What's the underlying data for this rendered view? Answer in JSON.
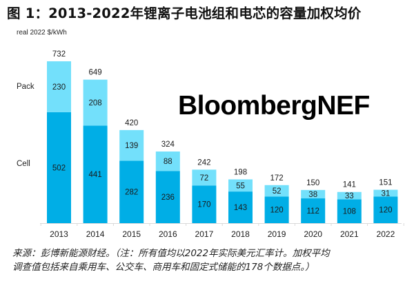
{
  "title": "图 1：2013-2022年锂离子电池组和电芯的容量加权均价",
  "footer": {
    "line1": "来源：彭博新能源财经。（注：所有值均以2022年实际美元汇率计。加权平均",
    "line2": "调查值包括来自乘用车、公交车、商用车和固定式储能的178个数据点。）"
  },
  "logo": "BloombergNEF",
  "chart_data": {
    "type": "bar",
    "stacked": true,
    "title": "图 1：2013-2022年锂离子电池组和电芯的容量加权均价",
    "ylabel": "real 2022 $/kWh",
    "xlabel": "",
    "ylim": [
      0,
      732
    ],
    "grid": false,
    "legend": "left (inline labels: Pack, Cell)",
    "categories": [
      "2013",
      "2014",
      "2015",
      "2016",
      "2017",
      "2018",
      "2019",
      "2020",
      "2021",
      "2022"
    ],
    "series": [
      {
        "name": "Cell",
        "color": "#00aee6",
        "values": [
          502,
          441,
          282,
          236,
          170,
          143,
          120,
          112,
          108,
          120
        ]
      },
      {
        "name": "Pack",
        "color": "#73e0fb",
        "values": [
          230,
          208,
          139,
          88,
          72,
          55,
          52,
          38,
          33,
          31
        ]
      }
    ],
    "totals": [
      732,
      649,
      420,
      324,
      242,
      198,
      172,
      150,
      141,
      151
    ],
    "series_labels": {
      "pack": "Pack",
      "cell": "Cell"
    }
  }
}
